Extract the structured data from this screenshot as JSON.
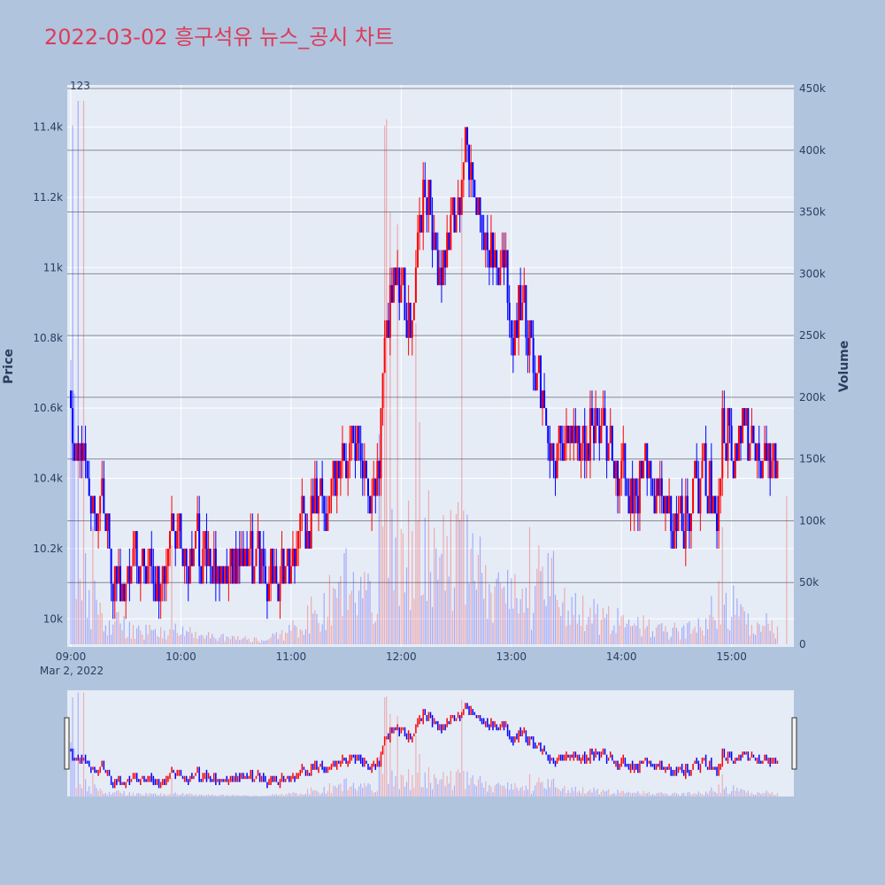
{
  "chart_data": {
    "type": "candlestick",
    "title": "2022-03-02 흥구석유 뉴스_공시 차트",
    "date_label": "Mar 2, 2022",
    "annotation": "123",
    "y_price_title": "Price",
    "y_volume_title": "Volume",
    "price_ylim": [
      9920,
      11520
    ],
    "volume_ylim": [
      0,
      450000
    ],
    "x_range": [
      "09:00",
      "15:30"
    ],
    "x_ticks": [
      "09:00",
      "10:00",
      "11:00",
      "12:00",
      "13:00",
      "14:00",
      "15:00"
    ],
    "price_ticks": [
      {
        "value": 10000,
        "label": "10k"
      },
      {
        "value": 10200,
        "label": "10.2k"
      },
      {
        "value": 10400,
        "label": "10.4k"
      },
      {
        "value": 10600,
        "label": "10.6k"
      },
      {
        "value": 10800,
        "label": "10.8k"
      },
      {
        "value": 11000,
        "label": "11k"
      },
      {
        "value": 11200,
        "label": "11.2k"
      },
      {
        "value": 11400,
        "label": "11.4k"
      }
    ],
    "volume_ticks": [
      {
        "value": 0,
        "label": "0"
      },
      {
        "value": 50000,
        "label": "50k"
      },
      {
        "value": 100000,
        "label": "100k"
      },
      {
        "value": 150000,
        "label": "150k"
      },
      {
        "value": 200000,
        "label": "200k"
      },
      {
        "value": 250000,
        "label": "250k"
      },
      {
        "value": 300000,
        "label": "300k"
      },
      {
        "value": 350000,
        "label": "350k"
      },
      {
        "value": 400000,
        "label": "400k"
      },
      {
        "value": 450000,
        "label": "450k"
      }
    ],
    "price_anchors": [
      [
        "09:00",
        10650
      ],
      [
        "09:02",
        10450
      ],
      [
        "09:05",
        10500
      ],
      [
        "09:08",
        10400
      ],
      [
        "09:12",
        10350
      ],
      [
        "09:18",
        10280
      ],
      [
        "09:22",
        10150
      ],
      [
        "09:28",
        10050
      ],
      [
        "09:32",
        10150
      ],
      [
        "09:40",
        10150
      ],
      [
        "09:45",
        10100
      ],
      [
        "09:50",
        10150
      ],
      [
        "09:55",
        10200
      ],
      [
        "10:00",
        10220
      ],
      [
        "10:06",
        10200
      ],
      [
        "10:12",
        10180
      ],
      [
        "10:20",
        10120
      ],
      [
        "10:30",
        10150
      ],
      [
        "10:40",
        10140
      ],
      [
        "10:50",
        10120
      ],
      [
        "11:00",
        10150
      ],
      [
        "11:05",
        10220
      ],
      [
        "11:10",
        10300
      ],
      [
        "11:15",
        10360
      ],
      [
        "11:20",
        10300
      ],
      [
        "11:25",
        10420
      ],
      [
        "11:30",
        10420
      ],
      [
        "11:33",
        10550
      ],
      [
        "11:38",
        10450
      ],
      [
        "11:45",
        10350
      ],
      [
        "11:48",
        10450
      ],
      [
        "11:52",
        10850
      ],
      [
        "11:55",
        11000
      ],
      [
        "12:00",
        10900
      ],
      [
        "12:05",
        10850
      ],
      [
        "12:07",
        10950
      ],
      [
        "12:10",
        11150
      ],
      [
        "12:13",
        11250
      ],
      [
        "12:18",
        11050
      ],
      [
        "12:22",
        11000
      ],
      [
        "12:27",
        11100
      ],
      [
        "12:32",
        11200
      ],
      [
        "12:35",
        11380
      ],
      [
        "12:40",
        11200
      ],
      [
        "12:45",
        11100
      ],
      [
        "12:50",
        11050
      ],
      [
        "12:55",
        11000
      ],
      [
        "13:00",
        10850
      ],
      [
        "13:05",
        10900
      ],
      [
        "13:10",
        10800
      ],
      [
        "13:15",
        10700
      ],
      [
        "13:20",
        10500
      ],
      [
        "13:25",
        10450
      ],
      [
        "13:30",
        10500
      ],
      [
        "13:38",
        10500
      ],
      [
        "13:45",
        10600
      ],
      [
        "13:50",
        10550
      ],
      [
        "13:55",
        10450
      ],
      [
        "14:00",
        10400
      ],
      [
        "14:05",
        10350
      ],
      [
        "14:10",
        10400
      ],
      [
        "14:20",
        10380
      ],
      [
        "14:25",
        10300
      ],
      [
        "14:30",
        10250
      ],
      [
        "14:35",
        10300
      ],
      [
        "14:40",
        10350
      ],
      [
        "14:45",
        10400
      ],
      [
        "14:50",
        10350
      ],
      [
        "14:53",
        10300
      ],
      [
        "14:55",
        10550
      ],
      [
        "15:00",
        10500
      ],
      [
        "15:05",
        10550
      ],
      [
        "15:10",
        10500
      ],
      [
        "15:12",
        10450
      ],
      [
        "15:15",
        10400
      ],
      [
        "15:20",
        10450
      ],
      [
        "15:25",
        10450
      ]
    ],
    "volume_anchors": [
      [
        "09:00",
        300000
      ],
      [
        "09:03",
        80000
      ],
      [
        "09:10",
        40000
      ],
      [
        "09:20",
        22000
      ],
      [
        "09:30",
        15000
      ],
      [
        "09:45",
        10000
      ],
      [
        "10:00",
        12000
      ],
      [
        "10:15",
        8000
      ],
      [
        "10:30",
        5000
      ],
      [
        "10:45",
        4000
      ],
      [
        "11:00",
        12000
      ],
      [
        "11:10",
        25000
      ],
      [
        "11:20",
        40000
      ],
      [
        "11:30",
        55000
      ],
      [
        "11:40",
        45000
      ],
      [
        "11:45",
        35000
      ],
      [
        "11:50",
        150000
      ],
      [
        "11:55",
        110000
      ],
      [
        "12:00",
        70000
      ],
      [
        "12:10",
        100000
      ],
      [
        "12:20",
        70000
      ],
      [
        "12:30",
        80000
      ],
      [
        "12:40",
        65000
      ],
      [
        "12:50",
        50000
      ],
      [
        "13:00",
        40000
      ],
      [
        "13:10",
        30000
      ],
      [
        "13:20",
        60000
      ],
      [
        "13:30",
        30000
      ],
      [
        "13:45",
        25000
      ],
      [
        "14:00",
        20000
      ],
      [
        "14:15",
        15000
      ],
      [
        "14:30",
        12000
      ],
      [
        "14:45",
        15000
      ],
      [
        "14:55",
        45000
      ],
      [
        "15:05",
        25000
      ],
      [
        "15:20",
        18000
      ],
      [
        "15:25",
        10000
      ]
    ],
    "volume_spikes": [
      [
        "09:01",
        420000
      ],
      [
        "09:04",
        440000
      ],
      [
        "09:07",
        440000
      ],
      [
        "09:12",
        95000
      ],
      [
        "09:55",
        80000
      ],
      [
        "11:48",
        170000
      ],
      [
        "11:51",
        420000
      ],
      [
        "11:52",
        425000
      ],
      [
        "11:54",
        350000
      ],
      [
        "11:58",
        340000
      ],
      [
        "12:08",
        260000
      ],
      [
        "12:10",
        180000
      ],
      [
        "12:33",
        410000
      ],
      [
        "12:36",
        105000
      ],
      [
        "13:10",
        95000
      ],
      [
        "13:15",
        80000
      ],
      [
        "14:55",
        95000
      ],
      [
        "15:30",
        120000
      ]
    ],
    "colors": {
      "up": "#ff0000",
      "down": "#0000ff",
      "background": "#b0c4de",
      "plot_bg": "#e5ecf6",
      "title": "#dc3c5a"
    }
  }
}
